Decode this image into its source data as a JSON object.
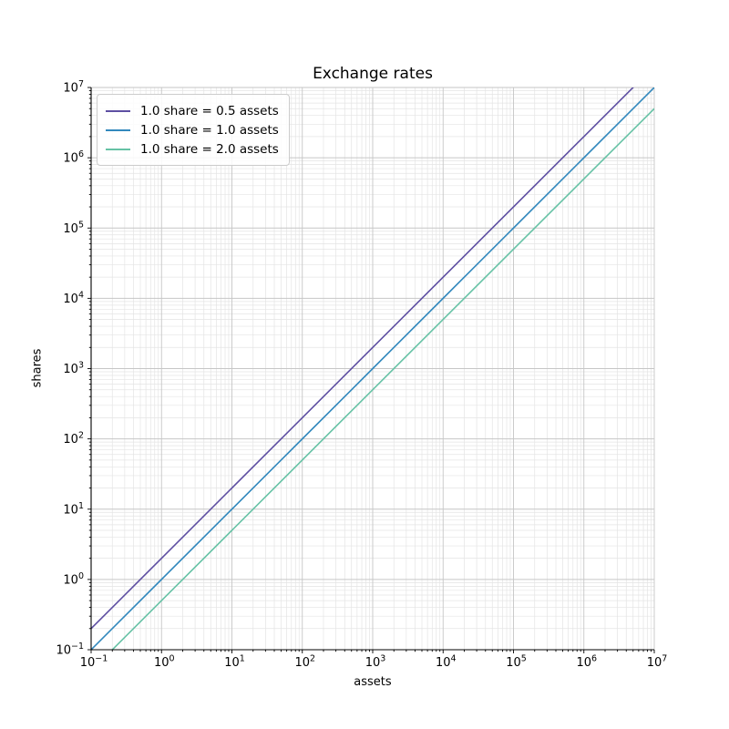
{
  "figure": {
    "background": "#ffffff"
  },
  "chart_data": {
    "type": "line",
    "title": "Exchange rates",
    "xlabel": "assets",
    "ylabel": "shares",
    "xscale": "log",
    "yscale": "log",
    "xlim": [
      0.1,
      10000000
    ],
    "ylim": [
      0.1,
      10000000
    ],
    "grid": "both",
    "x_tick_exponents": [
      -1,
      0,
      1,
      2,
      3,
      4,
      5,
      6,
      7
    ],
    "y_tick_exponents": [
      -1,
      0,
      1,
      2,
      3,
      4,
      5,
      6,
      7
    ],
    "legend": {
      "position": "upper left",
      "entries": [
        "1.0 share = 0.5 assets",
        "1.0 share = 1.0 assets",
        "1.0 share = 2.0 assets"
      ]
    },
    "series": [
      {
        "name": "1.0 share = 0.5 assets",
        "color": "#5e4fa2",
        "assets_per_share": 0.5,
        "x": [
          0.1,
          1,
          10,
          100,
          1000,
          10000,
          100000,
          1000000,
          10000000
        ],
        "y": [
          0.2,
          2,
          20,
          200,
          2000,
          20000,
          200000,
          2000000,
          20000000
        ]
      },
      {
        "name": "1.0 share = 1.0 assets",
        "color": "#3288bd",
        "assets_per_share": 1.0,
        "x": [
          0.1,
          1,
          10,
          100,
          1000,
          10000,
          100000,
          1000000,
          10000000
        ],
        "y": [
          0.1,
          1,
          10,
          100,
          1000,
          10000,
          100000,
          1000000,
          10000000
        ]
      },
      {
        "name": "1.0 share = 2.0 assets",
        "color": "#66c2a5",
        "assets_per_share": 2.0,
        "x": [
          0.1,
          1,
          10,
          100,
          1000,
          10000,
          100000,
          1000000,
          10000000
        ],
        "y": [
          0.05,
          0.5,
          5,
          50,
          500,
          5000,
          50000,
          500000,
          5000000
        ]
      }
    ],
    "style": {
      "grid_major_color": "#c6c6c6",
      "grid_minor_color": "#e4e4e4",
      "spine_color": "#000000",
      "tick_color": "#000000",
      "text_color": "#000000",
      "line_width": 1.6
    }
  }
}
